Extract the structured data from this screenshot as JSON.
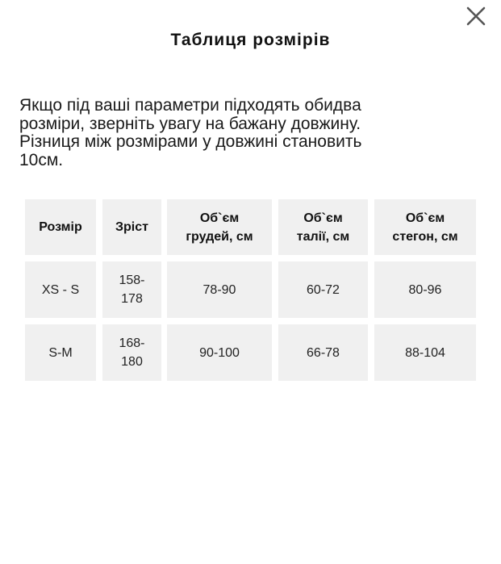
{
  "modal": {
    "title": "Таблиця розмірів",
    "close_icon": "close-icon",
    "description_lines": [
      "Якщо під ваші параметри підходять обидва",
      "розміри, зверніть увагу на бажану довжину.",
      "Різниця між розмірами у довжині становить",
      "10см."
    ]
  },
  "table": {
    "headers": [
      "Розмір",
      "Зріст",
      "Об`єм грудей, см",
      "Об`єм талії, см",
      "Об`єм стегон, см"
    ],
    "rows": [
      [
        "XS - S",
        "158-178",
        "78-90",
        "60-72",
        "80-96"
      ],
      [
        "S-M",
        "168-180",
        "90-100",
        "66-78",
        "88-104"
      ]
    ]
  }
}
